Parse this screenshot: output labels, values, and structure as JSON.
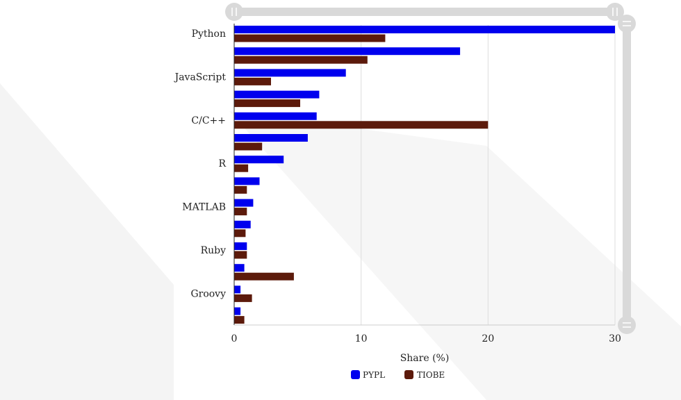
{
  "chart_data": {
    "type": "bar",
    "orientation": "horizontal",
    "title": "",
    "xlabel": "Share (%)",
    "ylabel": "",
    "xlim": [
      0,
      30
    ],
    "x_ticks": [
      0,
      10,
      20,
      30
    ],
    "grid": true,
    "legend_position": "bottom",
    "categories": [
      "Python",
      "",
      "JavaScript",
      "",
      "C/C++",
      "",
      "R",
      "",
      "MATLAB",
      "",
      "Ruby",
      "",
      "Groovy",
      ""
    ],
    "series": [
      {
        "name": "PYPL",
        "color": "#0000ee",
        "values": [
          30.0,
          17.8,
          8.8,
          6.7,
          6.5,
          5.8,
          3.9,
          2.0,
          1.5,
          1.3,
          1.0,
          0.8,
          0.5,
          0.5
        ]
      },
      {
        "name": "TIOBE",
        "color": "#5c1a0b",
        "values": [
          11.9,
          10.5,
          2.9,
          5.2,
          20.0,
          2.2,
          1.1,
          1.0,
          1.0,
          0.9,
          1.0,
          4.7,
          1.4,
          0.8
        ]
      }
    ]
  },
  "colors": {
    "grid": "#dddddd",
    "axis": "#222222",
    "watermark": "#f3f3f3",
    "slider": "#d9d9d9",
    "slider_handle": "#d9d9d9"
  },
  "icons": {
    "top_slider_handles": [
      "pause-icon",
      "pause-icon"
    ],
    "side_slider_handles": [
      "equals-icon",
      "equals-icon"
    ]
  }
}
